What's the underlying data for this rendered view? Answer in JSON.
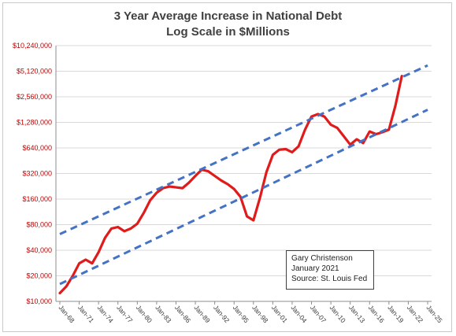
{
  "chart_data": {
    "type": "line",
    "title": "3 Year Average Increase in National Debt",
    "subtitle": "Log Scale in $Millions",
    "y_scale": "log2",
    "ylim": [
      10000,
      10240000
    ],
    "y_ticks": [
      10000,
      20000,
      40000,
      80000,
      160000,
      320000,
      640000,
      1280000,
      2560000,
      5120000,
      10240000
    ],
    "y_tick_labels": [
      "$10,000",
      "$20,000",
      "$40,000",
      "$80,000",
      "$160,000",
      "$320,000",
      "$640,000",
      "$1,280,000",
      "$2,560,000",
      "$5,120,000",
      "$10,240,000"
    ],
    "xlim": [
      1968,
      2025
    ],
    "x_tick_labels": [
      "Jan-68",
      "Jan-71",
      "Jan-74",
      "Jan-77",
      "Jan-80",
      "Jan-83",
      "Jan-86",
      "Jan-89",
      "Jan-92",
      "Jan-95",
      "Jan-98",
      "Jan-01",
      "Jan-04",
      "Jan-07",
      "Jan-10",
      "Jan-13",
      "Jan-16",
      "Jan-19",
      "Jan-22",
      "Jan-25"
    ],
    "grid": "horizontal",
    "series": [
      {
        "style": "solid",
        "color": "#e01b1b",
        "x": [
          1968,
          1969,
          1970,
          1971,
          1972,
          1973,
          1974,
          1975,
          1976,
          1977,
          1978,
          1979,
          1980,
          1981,
          1982,
          1983,
          1984,
          1985,
          1986,
          1987,
          1988,
          1989,
          1990,
          1991,
          1992,
          1993,
          1994,
          1995,
          1996,
          1997,
          1998,
          1999,
          2000,
          2001,
          2002,
          2003,
          2004,
          2005,
          2006,
          2007,
          2008,
          2009,
          2010,
          2011,
          2012,
          2013,
          2014,
          2015,
          2016,
          2017,
          2018,
          2019,
          2020,
          2021
        ],
        "y": [
          12500,
          15000,
          20000,
          28000,
          31000,
          28000,
          38000,
          56000,
          72000,
          75000,
          67000,
          72000,
          82000,
          110000,
          155000,
          190000,
          215000,
          225000,
          220000,
          215000,
          250000,
          300000,
          355000,
          340000,
          300000,
          265000,
          240000,
          210000,
          170000,
          100000,
          90000,
          165000,
          330000,
          530000,
          610000,
          620000,
          570000,
          670000,
          1050000,
          1500000,
          1600000,
          1500000,
          1200000,
          1100000,
          880000,
          700000,
          810000,
          730000,
          1000000,
          930000,
          980000,
          1050000,
          2000000,
          4500000
        ]
      },
      {
        "style": "dashed",
        "color": "#4472c4",
        "x": [
          1968,
          2025
        ],
        "y": [
          62000,
          6000000
        ]
      },
      {
        "style": "dashed",
        "color": "#4472c4",
        "x": [
          1968,
          2025
        ],
        "y": [
          16000,
          1800000
        ]
      }
    ],
    "annotation": [
      "Gary Christenson",
      "January 2021",
      "Source: St. Louis Fed"
    ]
  }
}
